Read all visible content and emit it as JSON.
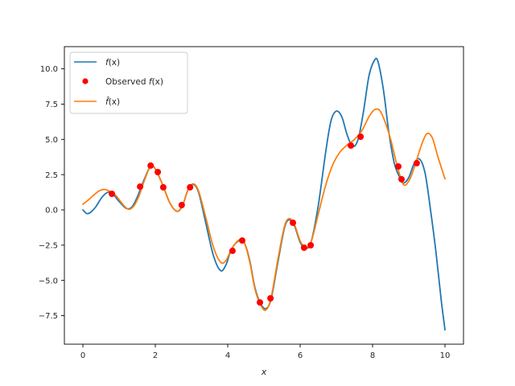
{
  "chart_data": {
    "type": "line",
    "title": "",
    "xlabel": "x",
    "ylabel": "",
    "xlim": [
      -0.5,
      10.5
    ],
    "ylim": [
      -9.5,
      11.7
    ],
    "grid": false,
    "legend_position": "upper left",
    "x_ticks": [
      0,
      2,
      4,
      6,
      8,
      10
    ],
    "x_tick_labels": [
      "0",
      "2",
      "4",
      "6",
      "8",
      "10"
    ],
    "y_ticks": [
      -7.5,
      -5.0,
      -2.5,
      0.0,
      2.5,
      5.0,
      7.5,
      10.0
    ],
    "y_tick_labels": [
      "−7.5",
      "−5.0",
      "−2.5",
      "0.0",
      "2.5",
      "5.0",
      "7.5",
      "10.0"
    ],
    "legend": [
      {
        "label_main": "f",
        "label_arg": "(x)",
        "kind": "line",
        "color": "#1f77b4"
      },
      {
        "label_prefix": "Observed ",
        "label_main": "f",
        "label_arg": "(x)",
        "kind": "marker",
        "color": "#ff0000"
      },
      {
        "label_main": "f̂",
        "label_arg": "(x)",
        "kind": "line",
        "color": "#ff7f0e"
      }
    ],
    "series": [
      {
        "name": "f(x)",
        "color": "#1f77b4",
        "kind": "line",
        "x": [
          0.0,
          0.1,
          0.2,
          0.35,
          0.5,
          0.65,
          0.8,
          1.0,
          1.2,
          1.35,
          1.5,
          1.7,
          1.87,
          2.0,
          2.2,
          2.4,
          2.6,
          2.75,
          2.9,
          3.05,
          3.2,
          3.4,
          3.6,
          3.8,
          3.95,
          4.1,
          4.3,
          4.45,
          4.6,
          4.75,
          4.9,
          5.05,
          5.2,
          5.4,
          5.6,
          5.8,
          6.0,
          6.15,
          6.3,
          6.5,
          6.7,
          6.85,
          7.0,
          7.15,
          7.3,
          7.45,
          7.6,
          7.75,
          7.9,
          8.05,
          8.15,
          8.3,
          8.45,
          8.6,
          8.75,
          8.85,
          9.0,
          9.15,
          9.3,
          9.45,
          9.6,
          9.75,
          9.9,
          10.0
        ],
        "y": [
          0.0,
          -0.25,
          -0.2,
          0.2,
          0.8,
          1.2,
          1.2,
          0.6,
          0.1,
          0.2,
          0.9,
          2.2,
          3.1,
          2.9,
          1.8,
          0.5,
          -0.1,
          0.3,
          1.4,
          1.8,
          1.2,
          -1.0,
          -3.2,
          -4.3,
          -3.9,
          -2.8,
          -2.2,
          -2.3,
          -3.5,
          -5.5,
          -6.6,
          -7.0,
          -6.3,
          -3.5,
          -1.0,
          -0.9,
          -2.3,
          -2.7,
          -2.3,
          0.3,
          4.0,
          6.3,
          7.0,
          6.6,
          5.3,
          4.5,
          5.0,
          7.0,
          9.5,
          10.6,
          10.5,
          8.5,
          5.5,
          3.3,
          2.3,
          1.9,
          2.3,
          3.3,
          3.6,
          2.6,
          0.0,
          -3.0,
          -6.5,
          -8.5
        ]
      },
      {
        "name": "f̂(x)",
        "color": "#ff7f0e",
        "kind": "line",
        "x": [
          0.0,
          0.15,
          0.3,
          0.45,
          0.6,
          0.75,
          0.9,
          1.1,
          1.25,
          1.4,
          1.55,
          1.7,
          1.87,
          2.0,
          2.2,
          2.4,
          2.6,
          2.75,
          2.9,
          3.05,
          3.2,
          3.4,
          3.6,
          3.8,
          3.95,
          4.1,
          4.3,
          4.45,
          4.6,
          4.75,
          4.9,
          5.05,
          5.2,
          5.4,
          5.6,
          5.8,
          6.0,
          6.15,
          6.3,
          6.5,
          6.7,
          6.9,
          7.1,
          7.3,
          7.5,
          7.7,
          7.9,
          8.05,
          8.2,
          8.35,
          8.5,
          8.65,
          8.8,
          8.9,
          9.05,
          9.2,
          9.35,
          9.5,
          9.65,
          9.8,
          10.0
        ],
        "y": [
          0.4,
          0.7,
          1.05,
          1.35,
          1.45,
          1.3,
          1.05,
          0.4,
          0.05,
          0.25,
          1.0,
          2.1,
          3.1,
          2.9,
          1.8,
          0.5,
          -0.1,
          0.3,
          1.4,
          1.85,
          1.3,
          -0.6,
          -2.6,
          -3.7,
          -3.6,
          -2.8,
          -2.15,
          -2.3,
          -3.6,
          -5.6,
          -6.7,
          -7.1,
          -6.2,
          -3.3,
          -0.9,
          -0.8,
          -2.2,
          -2.65,
          -2.3,
          -0.3,
          1.7,
          3.2,
          4.1,
          4.6,
          5.0,
          5.6,
          6.6,
          7.1,
          7.05,
          6.2,
          5.0,
          3.4,
          2.1,
          1.75,
          2.3,
          3.4,
          4.6,
          5.4,
          5.1,
          3.8,
          2.2
        ]
      },
      {
        "name": "Observed f(x)",
        "color": "#ff0000",
        "kind": "scatter",
        "x": [
          0.8,
          1.58,
          1.87,
          2.07,
          2.22,
          2.73,
          2.96,
          4.13,
          4.4,
          4.89,
          5.18,
          5.8,
          6.11,
          6.29,
          7.4,
          7.67,
          8.71,
          8.8,
          9.22
        ],
        "y": [
          1.14,
          1.65,
          3.14,
          2.68,
          1.6,
          0.34,
          1.6,
          -2.9,
          -2.17,
          -6.56,
          -6.27,
          -0.91,
          -2.68,
          -2.51,
          4.56,
          5.19,
          3.08,
          2.17,
          3.31
        ]
      }
    ]
  }
}
